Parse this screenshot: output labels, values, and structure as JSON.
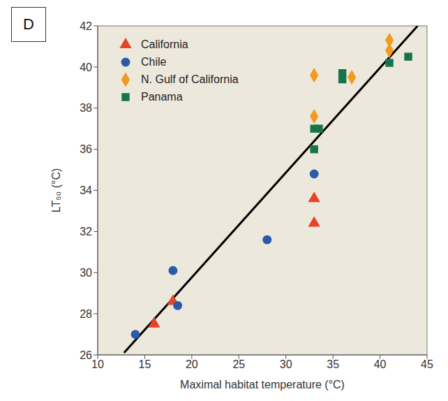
{
  "chart_data": {
    "type": "scatter",
    "panel_label": "D",
    "x_label": "Maximal habitat temperature (°C)",
    "y_label": "LT₅₀ (°C)",
    "xlim": [
      10,
      45
    ],
    "xticks": [
      10,
      15,
      20,
      25,
      30,
      35,
      40,
      45
    ],
    "ylim": [
      26,
      42
    ],
    "yticks": [
      26,
      28,
      30,
      32,
      34,
      36,
      38,
      40,
      42
    ],
    "legend": "upper left",
    "series": [
      {
        "name": "California",
        "color": "#e5432a",
        "marker": "triangle",
        "x": [
          16,
          18,
          33,
          33
        ],
        "values": [
          27.5,
          28.6,
          33.6,
          32.4
        ]
      },
      {
        "name": "Chile",
        "color": "#2b5ba8",
        "marker": "circle",
        "x": [
          14,
          18,
          18.5,
          28,
          33
        ],
        "values": [
          27,
          30.1,
          28.4,
          31.6,
          34.8
        ]
      },
      {
        "name": "N. Gulf of California",
        "color": "#f39a1e",
        "marker": "diamond",
        "x": [
          33,
          33,
          37,
          41,
          41
        ],
        "values": [
          39.6,
          37.6,
          39.5,
          41.3,
          40.8
        ]
      },
      {
        "name": "Panama",
        "color": "#17744a",
        "marker": "square",
        "x": [
          33,
          33.5,
          33,
          36,
          36,
          41,
          43
        ],
        "values": [
          37,
          37,
          36,
          39.7,
          39.4,
          40.2,
          40.5
        ]
      }
    ],
    "line": {
      "x": [
        12.8,
        44
      ],
      "values": [
        26.1,
        42
      ],
      "color": "#000000"
    }
  }
}
